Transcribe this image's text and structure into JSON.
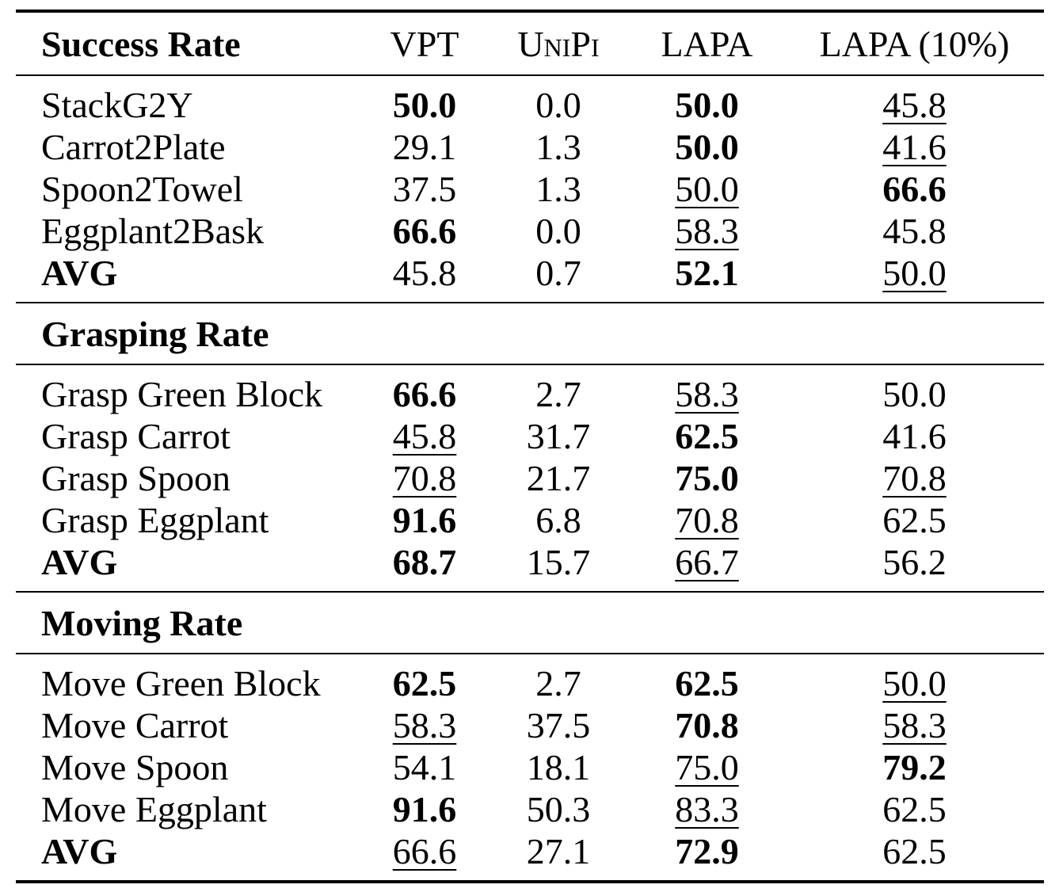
{
  "header": {
    "col0": "Success Rate",
    "col1": "VPT",
    "col2": "UniPi",
    "col3": "LAPA",
    "col4": "LAPA (10%)"
  },
  "sections": [
    {
      "title": "Success Rate",
      "rows": [
        {
          "label": "StackG2Y",
          "label_bold": false,
          "values": [
            "50.0",
            "0.0",
            "50.0",
            "45.8"
          ],
          "bold": [
            true,
            false,
            true,
            false
          ],
          "underline": [
            false,
            false,
            false,
            true
          ]
        },
        {
          "label": "Carrot2Plate",
          "label_bold": false,
          "values": [
            "29.1",
            "1.3",
            "50.0",
            "41.6"
          ],
          "bold": [
            false,
            false,
            true,
            false
          ],
          "underline": [
            false,
            false,
            false,
            true
          ]
        },
        {
          "label": "Spoon2Towel",
          "label_bold": false,
          "values": [
            "37.5",
            "1.3",
            "50.0",
            "66.6"
          ],
          "bold": [
            false,
            false,
            false,
            true
          ],
          "underline": [
            false,
            false,
            true,
            false
          ]
        },
        {
          "label": "Eggplant2Bask",
          "label_bold": false,
          "values": [
            "66.6",
            "0.0",
            "58.3",
            "45.8"
          ],
          "bold": [
            true,
            false,
            false,
            false
          ],
          "underline": [
            false,
            false,
            true,
            false
          ]
        },
        {
          "label": "AVG",
          "label_bold": true,
          "values": [
            "45.8",
            "0.7",
            "52.1",
            "50.0"
          ],
          "bold": [
            false,
            false,
            true,
            false
          ],
          "underline": [
            false,
            false,
            false,
            true
          ]
        }
      ]
    },
    {
      "title": "Grasping Rate",
      "rows": [
        {
          "label": "Grasp Green Block",
          "label_bold": false,
          "values": [
            "66.6",
            "2.7",
            "58.3",
            "50.0"
          ],
          "bold": [
            true,
            false,
            false,
            false
          ],
          "underline": [
            false,
            false,
            true,
            false
          ]
        },
        {
          "label": "Grasp Carrot",
          "label_bold": false,
          "values": [
            "45.8",
            "31.7",
            "62.5",
            "41.6"
          ],
          "bold": [
            false,
            false,
            true,
            false
          ],
          "underline": [
            true,
            false,
            false,
            false
          ]
        },
        {
          "label": "Grasp Spoon",
          "label_bold": false,
          "values": [
            "70.8",
            "21.7",
            "75.0",
            "70.8"
          ],
          "bold": [
            false,
            false,
            true,
            false
          ],
          "underline": [
            true,
            false,
            false,
            true
          ]
        },
        {
          "label": "Grasp Eggplant",
          "label_bold": false,
          "values": [
            "91.6",
            "6.8",
            "70.8",
            "62.5"
          ],
          "bold": [
            true,
            false,
            false,
            false
          ],
          "underline": [
            false,
            false,
            true,
            false
          ]
        },
        {
          "label": "AVG",
          "label_bold": true,
          "values": [
            "68.7",
            "15.7",
            "66.7",
            "56.2"
          ],
          "bold": [
            true,
            false,
            false,
            false
          ],
          "underline": [
            false,
            false,
            true,
            false
          ]
        }
      ]
    },
    {
      "title": "Moving Rate",
      "rows": [
        {
          "label": "Move Green Block",
          "label_bold": false,
          "values": [
            "62.5",
            "2.7",
            "62.5",
            "50.0"
          ],
          "bold": [
            true,
            false,
            true,
            false
          ],
          "underline": [
            false,
            false,
            false,
            true
          ]
        },
        {
          "label": "Move Carrot",
          "label_bold": false,
          "values": [
            "58.3",
            "37.5",
            "70.8",
            "58.3"
          ],
          "bold": [
            false,
            false,
            true,
            false
          ],
          "underline": [
            true,
            false,
            false,
            true
          ]
        },
        {
          "label": "Move Spoon",
          "label_bold": false,
          "values": [
            "54.1",
            "18.1",
            "75.0",
            "79.2"
          ],
          "bold": [
            false,
            false,
            false,
            true
          ],
          "underline": [
            false,
            false,
            true,
            false
          ]
        },
        {
          "label": "Move Eggplant",
          "label_bold": false,
          "values": [
            "91.6",
            "50.3",
            "83.3",
            "62.5"
          ],
          "bold": [
            true,
            false,
            false,
            false
          ],
          "underline": [
            false,
            false,
            true,
            false
          ]
        },
        {
          "label": "AVG",
          "label_bold": true,
          "values": [
            "66.6",
            "27.1",
            "72.9",
            "62.5"
          ],
          "bold": [
            false,
            false,
            true,
            false
          ],
          "underline": [
            true,
            false,
            false,
            false
          ]
        }
      ]
    }
  ]
}
